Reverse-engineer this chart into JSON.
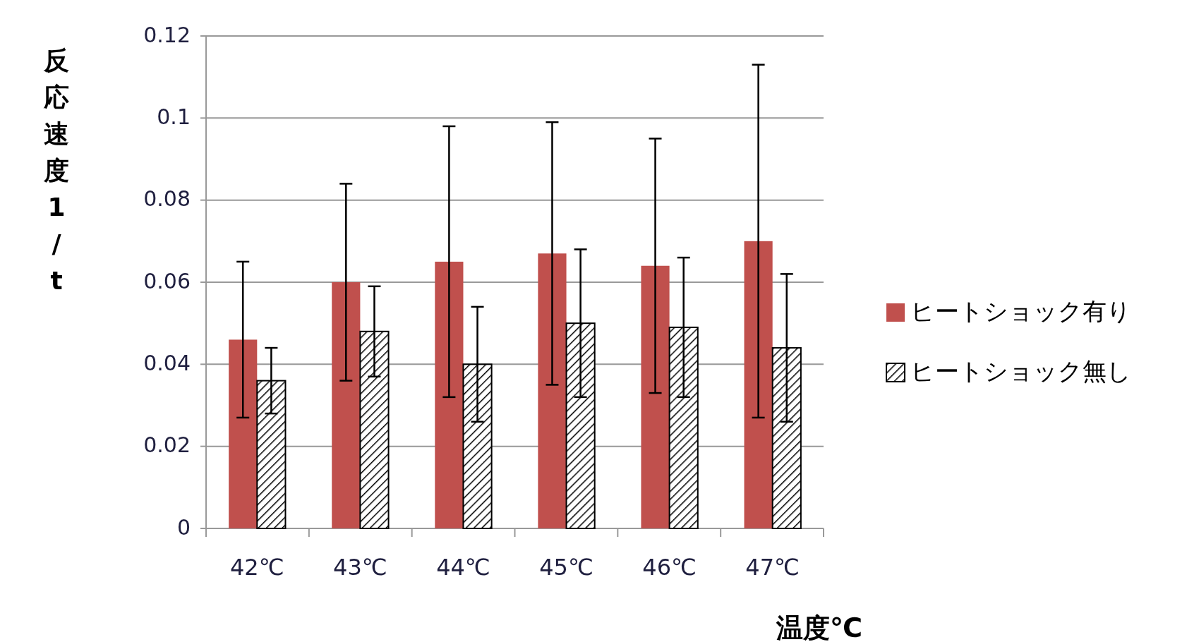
{
  "chart_data": {
    "type": "bar",
    "xlabel": "温度℃",
    "ylabel": "反応速度1/t",
    "categories": [
      "42℃",
      "43℃",
      "44℃",
      "45℃",
      "46℃",
      "47℃"
    ],
    "series": [
      {
        "name": "ヒートショック有り",
        "color": "#c0504d",
        "values": [
          0.046,
          0.06,
          0.065,
          0.067,
          0.064,
          0.07
        ],
        "errors": [
          0.019,
          0.024,
          0.033,
          0.032,
          0.031,
          0.043
        ]
      },
      {
        "name": "ヒートショック無し",
        "color": "#000000",
        "values": [
          0.036,
          0.048,
          0.04,
          0.05,
          0.049,
          0.044
        ],
        "errors": [
          0.008,
          0.011,
          0.014,
          0.018,
          0.017,
          0.018
        ]
      }
    ],
    "ylim": [
      0,
      0.12
    ],
    "yticks": [
      0,
      0.02,
      0.04,
      0.06,
      0.08,
      0.1,
      0.12
    ],
    "grid": "y",
    "legend": "right"
  }
}
